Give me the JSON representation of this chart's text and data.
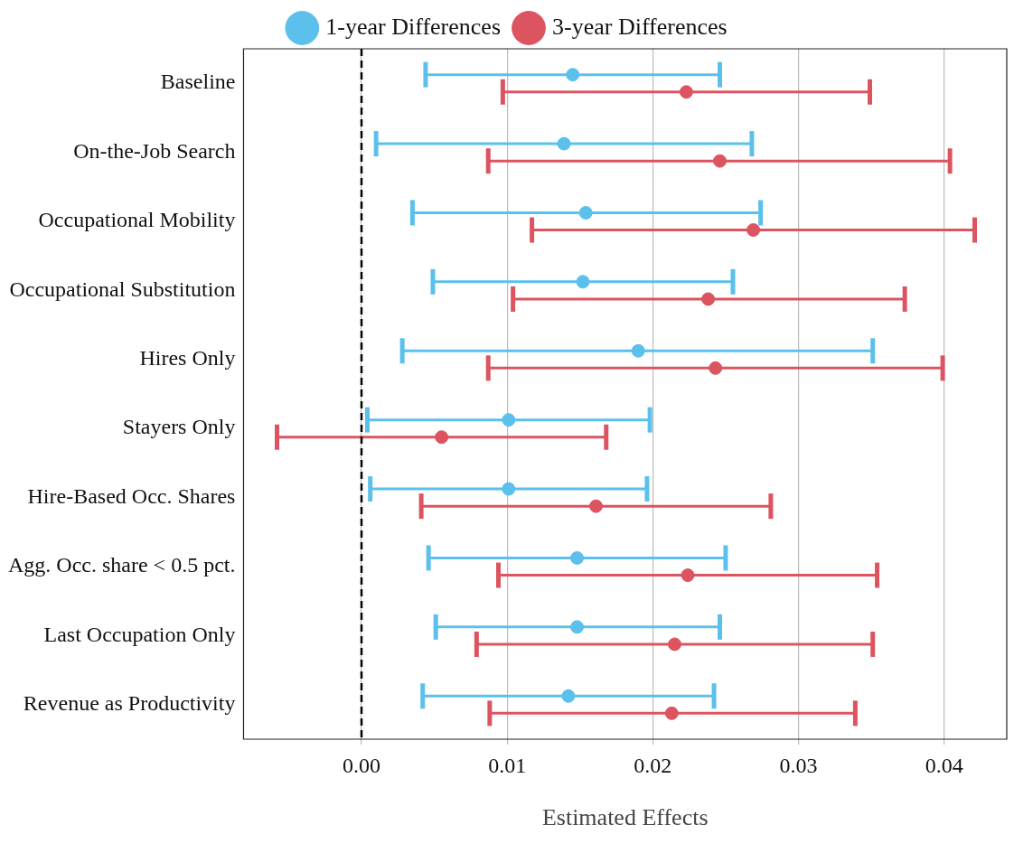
{
  "chart_data": {
    "type": "scatter",
    "orientation": "horizontal",
    "xlabel": "Estimated Effects",
    "categories": [
      "Baseline",
      "On-the-Job Search",
      "Occupational Mobility",
      "Occupational Substitution",
      "Hires Only",
      "Stayers Only",
      "Hire-Based Occ. Shares",
      "Agg. Occ. share < 0.5 pct.",
      "Last Occupation Only",
      "Revenue as Productivity"
    ],
    "series": [
      {
        "name": "1-year Differences",
        "color": "#5bc0eb",
        "values": [
          0.0145,
          0.0139,
          0.0154,
          0.0152,
          0.019,
          0.0101,
          0.0101,
          0.0148,
          0.0148,
          0.0142
        ],
        "errors": [
          [
            0.0044,
            0.0246
          ],
          [
            0.001,
            0.0268
          ],
          [
            0.0035,
            0.0274
          ],
          [
            0.0049,
            0.0255
          ],
          [
            0.0028,
            0.0351
          ],
          [
            0.0004,
            0.0198
          ],
          [
            0.0006,
            0.0196
          ],
          [
            0.0046,
            0.025
          ],
          [
            0.0051,
            0.0246
          ],
          [
            0.0042,
            0.0242
          ]
        ]
      },
      {
        "name": "3-year Differences",
        "color": "#dc5460",
        "values": [
          0.0223,
          0.0246,
          0.0269,
          0.0238,
          0.0243,
          0.0055,
          0.0161,
          0.0224,
          0.0215,
          0.0213
        ],
        "errors": [
          [
            0.0097,
            0.0349
          ],
          [
            0.0087,
            0.0404
          ],
          [
            0.0117,
            0.0421
          ],
          [
            0.0104,
            0.0373
          ],
          [
            0.0087,
            0.0399
          ],
          [
            -0.0058,
            0.0168
          ],
          [
            0.0041,
            0.0281
          ],
          [
            0.0094,
            0.0354
          ],
          [
            0.0079,
            0.0351
          ],
          [
            0.0088,
            0.0339
          ]
        ]
      }
    ],
    "xlim": [
      -0.0081,
      0.0443
    ],
    "xticks": [
      {
        "value": 0,
        "label": "0.00"
      },
      {
        "value": 0.01,
        "label": "0.01"
      },
      {
        "value": 0.02,
        "label": "0.02"
      },
      {
        "value": 0.03,
        "label": "0.03"
      },
      {
        "value": 0.04,
        "label": "0.04"
      }
    ],
    "ref_lines": [
      {
        "axis": "x",
        "value": 0,
        "color": "#000000",
        "line_style": "dashed"
      }
    ],
    "grid": "x",
    "legend": "top",
    "marker": "circle"
  }
}
